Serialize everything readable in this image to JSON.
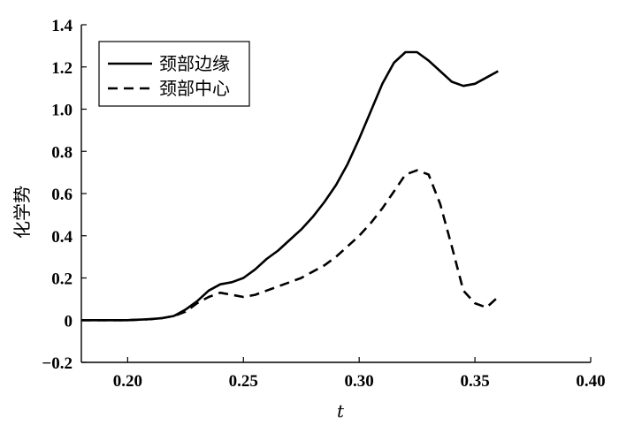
{
  "chart_data": {
    "type": "line",
    "xlabel": "t",
    "ylabel": "化学势",
    "xlim": [
      0.18,
      0.4
    ],
    "ylim": [
      -0.2,
      1.4
    ],
    "x_ticks": [
      0.2,
      0.25,
      0.3,
      0.35,
      0.4
    ],
    "x_tick_labels": [
      "0.20",
      "0.25",
      "0.30",
      "0.35",
      "0.40"
    ],
    "y_ticks": [
      -0.2,
      0,
      0.2,
      0.4,
      0.6,
      0.8,
      1.0,
      1.2,
      1.4
    ],
    "y_tick_labels": [
      "−0.2",
      "0",
      "0.2",
      "0.4",
      "0.6",
      "0.8",
      "1.0",
      "1.2",
      "1.4"
    ],
    "legend_position": "top-left",
    "grid": false,
    "series": [
      {
        "name": "颈部边缘",
        "style": "solid",
        "color": "#000000",
        "x": [
          0.18,
          0.2,
          0.21,
          0.215,
          0.22,
          0.225,
          0.23,
          0.235,
          0.24,
          0.245,
          0.25,
          0.255,
          0.26,
          0.265,
          0.27,
          0.275,
          0.28,
          0.285,
          0.29,
          0.295,
          0.3,
          0.305,
          0.31,
          0.315,
          0.32,
          0.325,
          0.33,
          0.335,
          0.34,
          0.345,
          0.35,
          0.355,
          0.36
        ],
        "values": [
          0.0,
          0.0,
          0.005,
          0.01,
          0.02,
          0.05,
          0.09,
          0.14,
          0.17,
          0.18,
          0.2,
          0.24,
          0.29,
          0.33,
          0.38,
          0.43,
          0.49,
          0.56,
          0.64,
          0.74,
          0.86,
          0.99,
          1.12,
          1.22,
          1.27,
          1.27,
          1.23,
          1.18,
          1.13,
          1.11,
          1.12,
          1.15,
          1.18
        ]
      },
      {
        "name": "颈部中心",
        "style": "dashed",
        "color": "#000000",
        "x": [
          0.18,
          0.2,
          0.21,
          0.215,
          0.22,
          0.225,
          0.23,
          0.235,
          0.24,
          0.245,
          0.25,
          0.255,
          0.26,
          0.265,
          0.27,
          0.275,
          0.28,
          0.285,
          0.29,
          0.295,
          0.3,
          0.305,
          0.31,
          0.315,
          0.32,
          0.325,
          0.33,
          0.335,
          0.34,
          0.345,
          0.35,
          0.355,
          0.36
        ],
        "values": [
          0.0,
          0.0,
          0.005,
          0.01,
          0.02,
          0.04,
          0.08,
          0.11,
          0.13,
          0.12,
          0.11,
          0.12,
          0.14,
          0.16,
          0.18,
          0.2,
          0.23,
          0.26,
          0.3,
          0.35,
          0.4,
          0.46,
          0.53,
          0.61,
          0.69,
          0.71,
          0.69,
          0.55,
          0.35,
          0.14,
          0.08,
          0.06,
          0.11
        ]
      }
    ]
  }
}
